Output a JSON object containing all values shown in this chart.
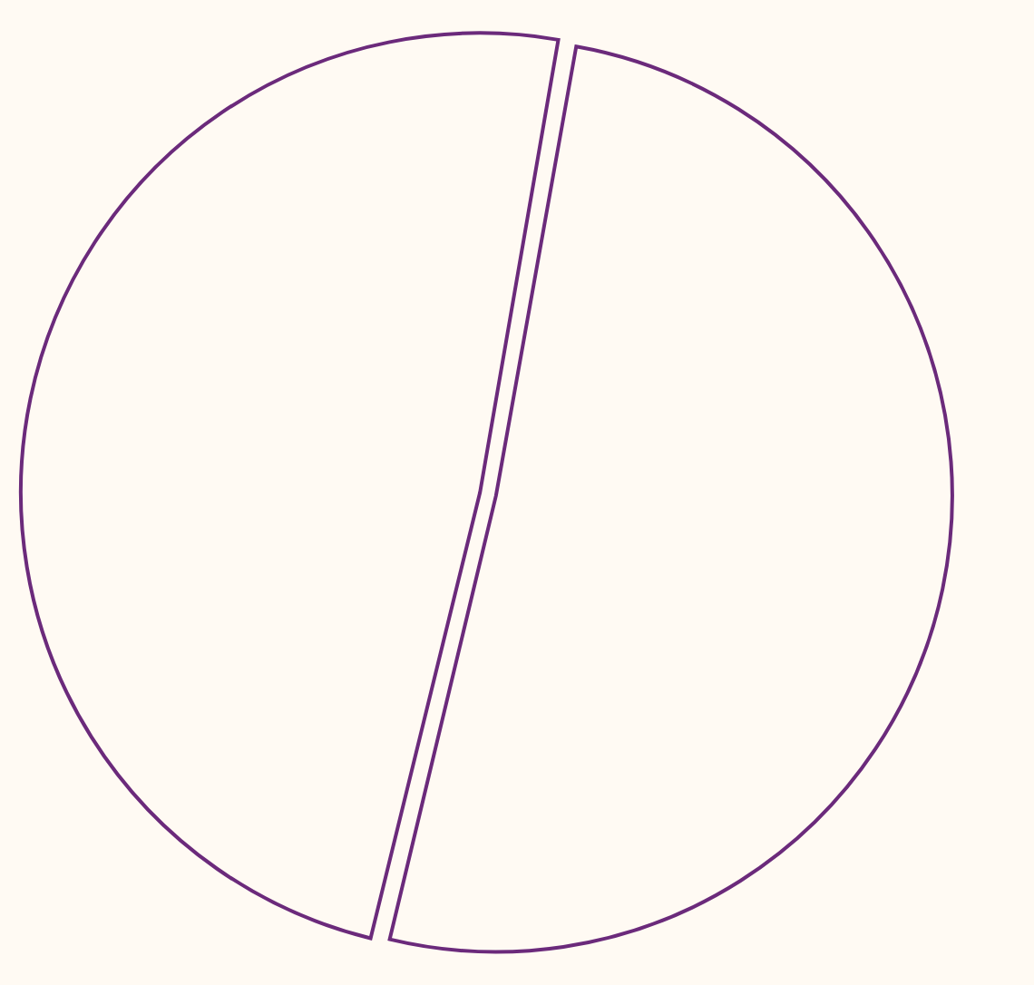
{
  "chart_data": {
    "type": "pie",
    "categories": [
      null,
      null
    ],
    "values": [
      51,
      49
    ],
    "colors": [
      "#6b2a7b",
      "#6b2a7b"
    ],
    "legend": false
  }
}
